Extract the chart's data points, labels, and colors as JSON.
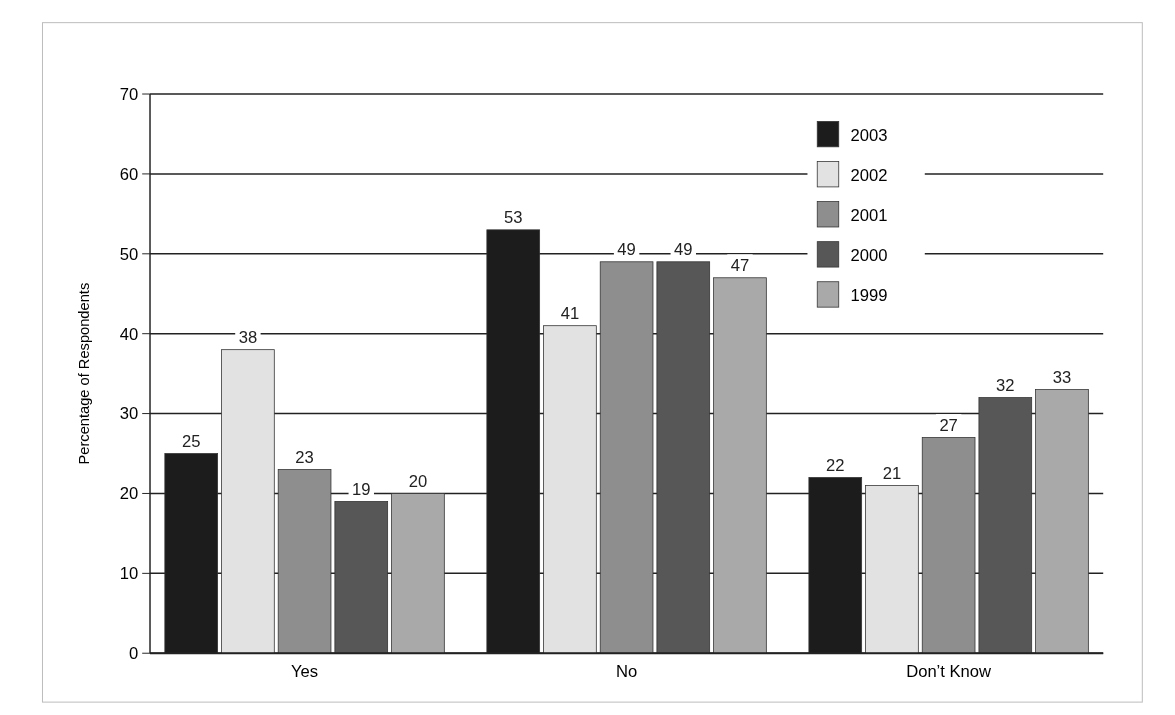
{
  "chart_data": {
    "type": "bar",
    "ylabel": "Percentage of Respondents",
    "categories": [
      "Yes",
      "No",
      "Don’t Know"
    ],
    "series": [
      {
        "name": "2003",
        "color": "#1c1c1c",
        "values": [
          25,
          53,
          22
        ]
      },
      {
        "name": "2002",
        "color": "#e2e2e2",
        "values": [
          38,
          41,
          21
        ]
      },
      {
        "name": "2001",
        "color": "#8e8e8e",
        "values": [
          23,
          49,
          27
        ]
      },
      {
        "name": "2000",
        "color": "#575757",
        "values": [
          19,
          49,
          32
        ]
      },
      {
        "name": "1999",
        "color": "#a9a9a9",
        "values": [
          20,
          47,
          33
        ]
      }
    ],
    "ylim": [
      0,
      70
    ],
    "yticks": [
      0,
      10,
      20,
      30,
      40,
      50,
      60,
      70
    ],
    "grid": "y",
    "legend": "top right",
    "data_labels": true
  }
}
